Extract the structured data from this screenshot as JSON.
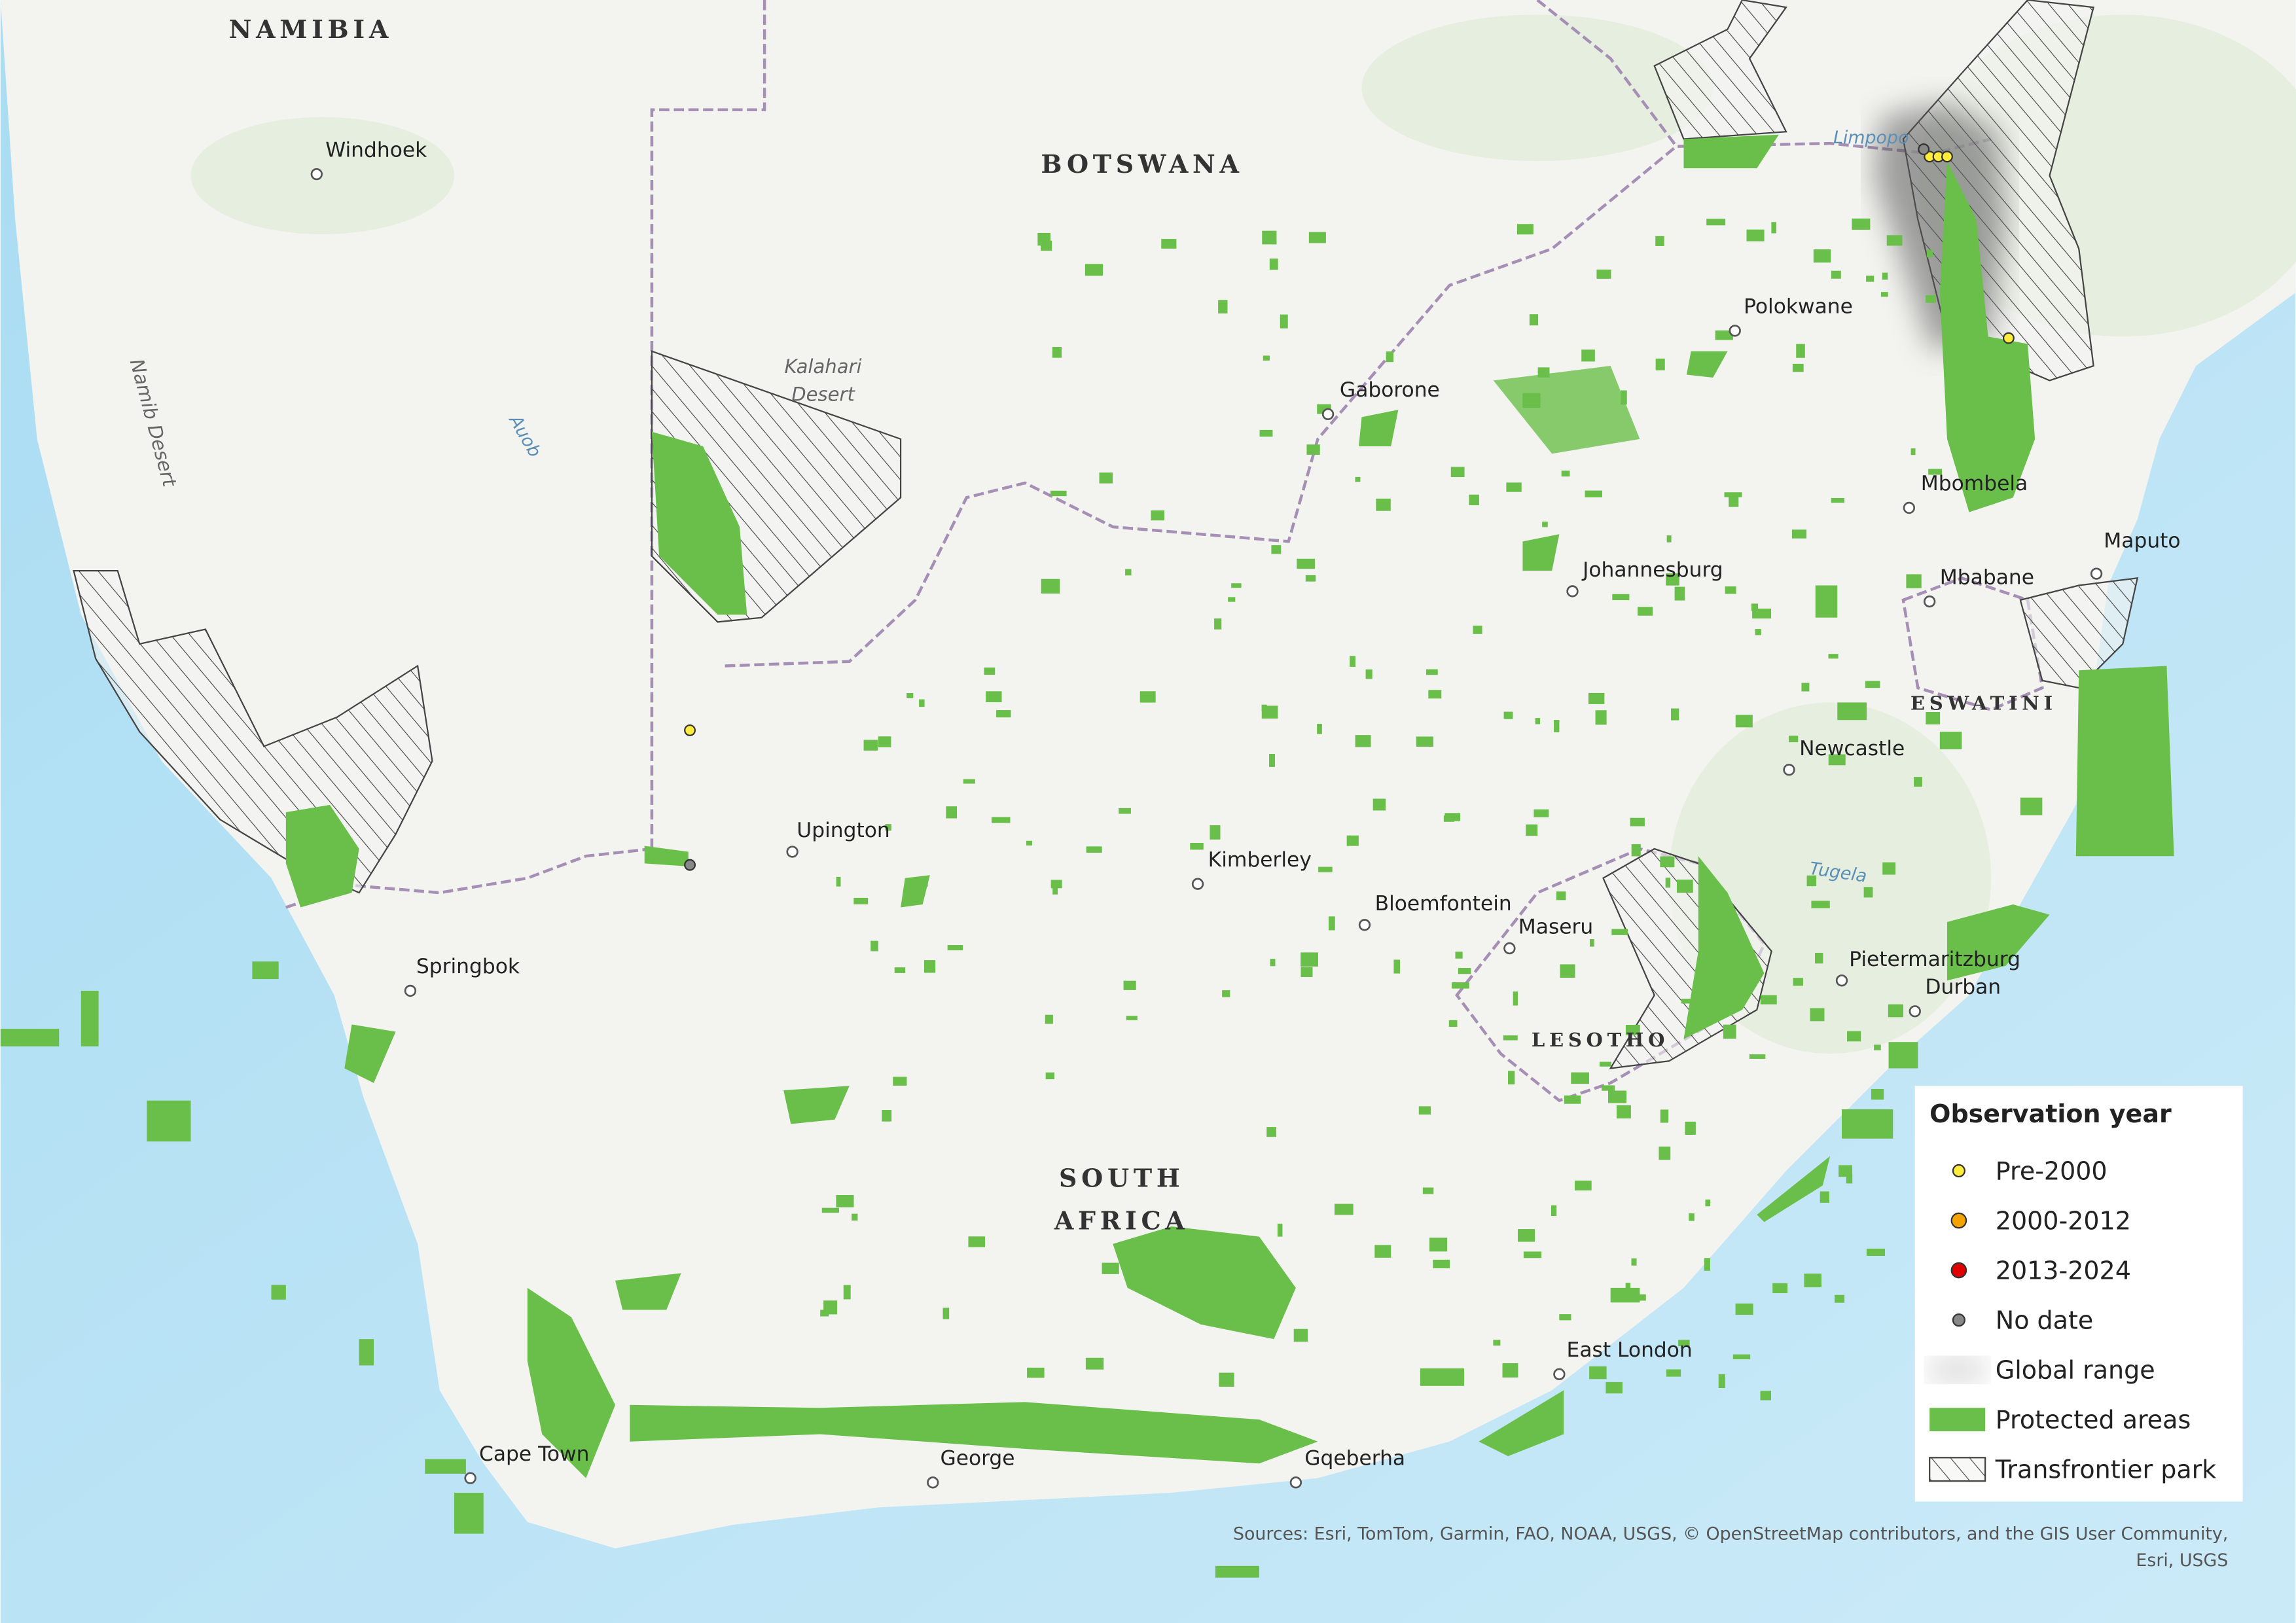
{
  "map": {
    "countries": {
      "namibia": "NAMIBIA",
      "botswana": "BOTSWANA",
      "south_africa": [
        "SOUTH",
        "AFRICA"
      ],
      "lesotho": "LESOTHO",
      "eswatini": "ESWATINI"
    },
    "cities": [
      "Windhoek",
      "Gaborone",
      "Polokwane",
      "Mbombela",
      "Maputo",
      "Mbabane",
      "Johannesburg",
      "Newcastle",
      "Upington",
      "Kimberley",
      "Bloemfontein",
      "Maseru",
      "Springbok",
      "Pietermaritzburg",
      "Durban",
      "East London",
      "Cape Town",
      "George",
      "Gqeberha"
    ],
    "features": {
      "kalahari": [
        "Kalahari",
        "Desert"
      ],
      "namib": "Namib Desert",
      "auob": "Auob",
      "limpopo": "Limpopo",
      "tugela": "Tugela"
    },
    "legend": {
      "title": "Observation year",
      "items": [
        "Pre-2000",
        "2000-2012",
        "2013-2024",
        "No date",
        "Global range",
        "Protected areas",
        "Transfrontier park"
      ]
    },
    "sources": [
      "Sources: Esri, TomTom, Garmin, FAO, NOAA, USGS, © OpenStreetMap contributors, and the GIS User Community,",
      "Esri, USGS"
    ]
  }
}
